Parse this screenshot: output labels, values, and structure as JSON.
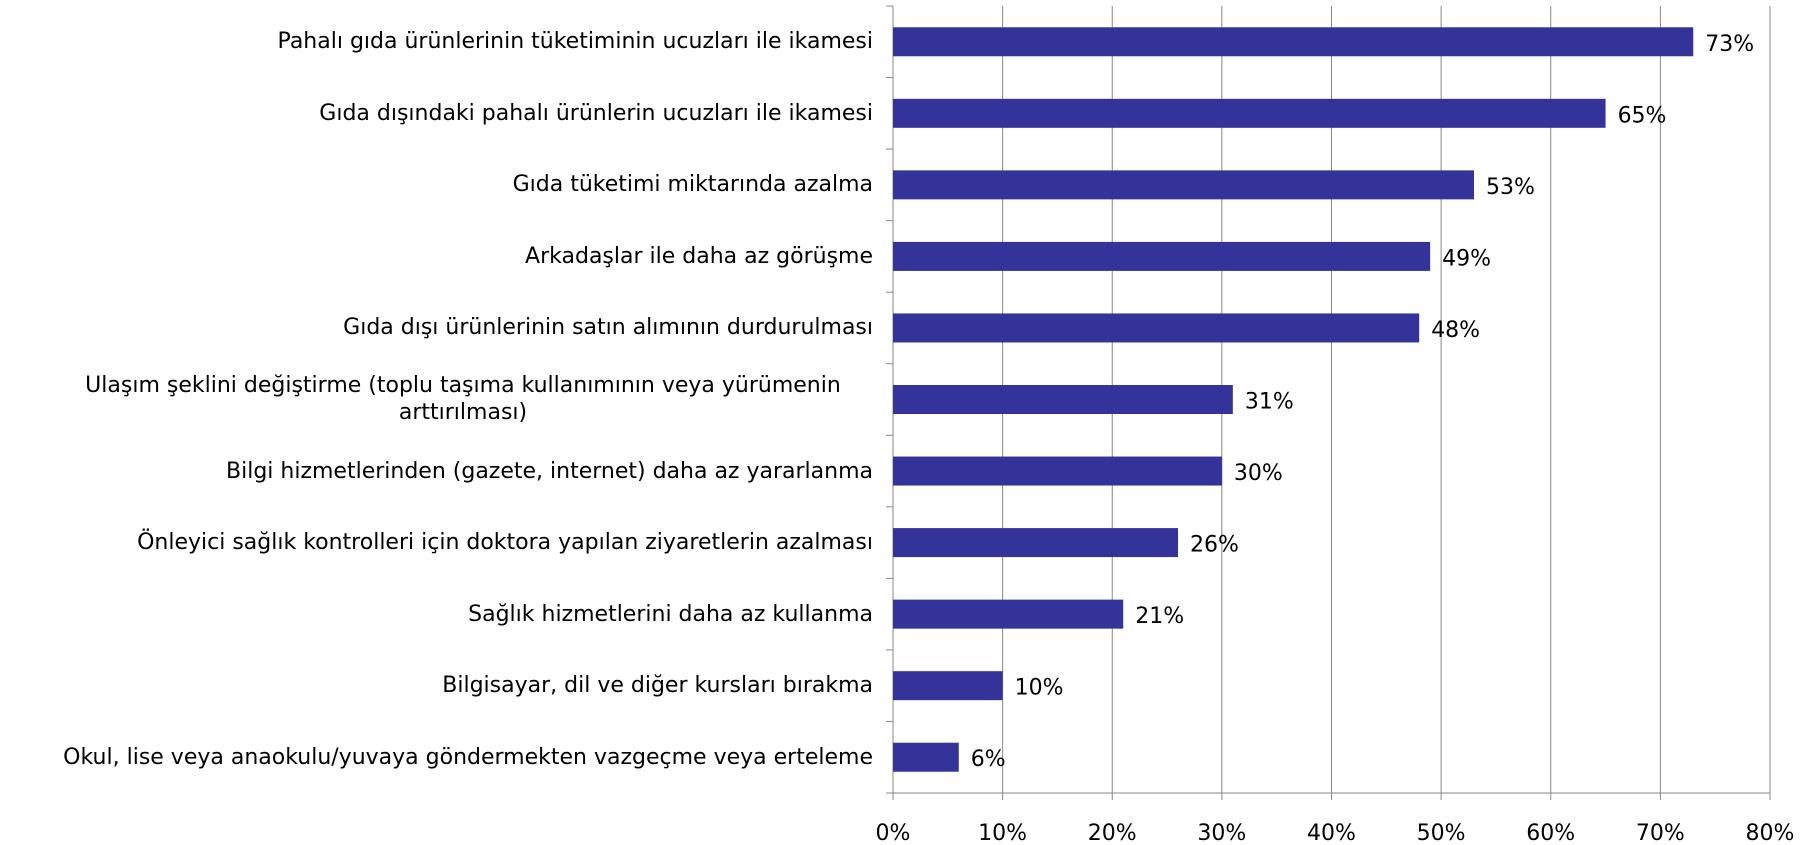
{
  "chart_data": {
    "type": "bar",
    "orientation": "horizontal",
    "categories": [
      "Pahalı gıda ürünlerinin tüketiminin ucuzları ile ikamesi",
      "Gıda dışındaki pahalı ürünlerin ucuzları ile ikamesi",
      "Gıda tüketimi miktarında azalma",
      "Arkadaşlar ile daha az görüşme",
      "Gıda dışı ürünlerinin satın alımının durdurulması",
      "Ulaşım şeklini değiştirme (toplu taşıma kullanımının veya yürümenin arttırılması)",
      "Bilgi hizmetlerinden (gazete, internet) daha az yararlanma",
      "Önleyici sağlık kontrolleri için doktora yapılan ziyaretlerin azalması",
      "Sağlık hizmetlerini daha az kullanma",
      "Bilgisayar, dil ve diğer kursları bırakma",
      "Okul, lise veya anaokulu/yuvaya göndermekten vazgeçme veya erteleme"
    ],
    "values": [
      73,
      65,
      53,
      49,
      48,
      31,
      30,
      26,
      21,
      10,
      6
    ],
    "value_labels": [
      "73%",
      "65%",
      "53%",
      "49%",
      "48%",
      "31%",
      "30%",
      "26%",
      "21%",
      "10%",
      "6%"
    ],
    "color": "#333399",
    "xlim": [
      0,
      80
    ],
    "xticks": [
      {
        "value": 0,
        "label": "0%"
      },
      {
        "value": 10,
        "label": "10%"
      },
      {
        "value": 20,
        "label": "20%"
      },
      {
        "value": 30,
        "label": "30%"
      },
      {
        "value": 40,
        "label": "40%"
      },
      {
        "value": 50,
        "label": "50%"
      },
      {
        "value": 60,
        "label": "60%"
      },
      {
        "value": 70,
        "label": "70%"
      },
      {
        "value": 80,
        "label": "80%"
      }
    ],
    "grid": true
  }
}
